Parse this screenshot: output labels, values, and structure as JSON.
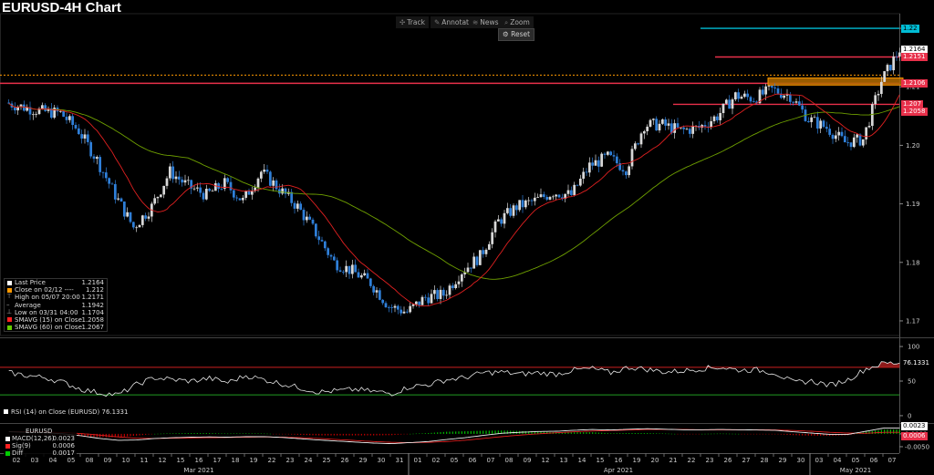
{
  "header": {
    "title": "EURUSD-4H Chart"
  },
  "toolbar": {
    "track": "Track",
    "annotate": "Annotate",
    "news": "News",
    "zoom": "Zoom",
    "reset": "Reset"
  },
  "legend": {
    "items": [
      {
        "label": "Last Price",
        "value": "1.2164",
        "color": "#ffffff"
      },
      {
        "label": "Close on 02/12 ----",
        "value": "1.212",
        "color": "#ff9900"
      },
      {
        "label": "High on 05/07 20:00",
        "value": "1.2171",
        "color": ""
      },
      {
        "label": "Average",
        "value": "1.1942",
        "color": ""
      },
      {
        "label": "Low on 03/31 04:00",
        "value": "1.1704",
        "color": ""
      },
      {
        "label": "SMAVG (15)   on Close",
        "value": "1.2058",
        "color": "#ff2020"
      },
      {
        "label": "SMAVG (60)   on Close",
        "value": "1.2067",
        "color": "#66cc00"
      }
    ]
  },
  "rsi_legend": {
    "label": "RSI (14)   on Close (EURUSD)",
    "value": "76.1331"
  },
  "macd_legend": {
    "title": "EURUSD",
    "items": [
      {
        "label": "MACD(12,26)",
        "value": "0.0023",
        "color": "#ffffff"
      },
      {
        "label": "Sig(9)",
        "value": "0.0006",
        "color": "#ff2020"
      },
      {
        "label": "Diff",
        "value": "0.0017",
        "color": "#00cc00"
      }
    ]
  },
  "price_tags": [
    {
      "text": "1.22",
      "price": 1.22,
      "bg": "#00bcd4",
      "fg": "#000000"
    },
    {
      "text": "1.2164",
      "price": 1.2164,
      "bg": "#ffffff",
      "fg": "#000000"
    },
    {
      "text": "1.2151",
      "price": 1.2151,
      "bg": "#e8304a",
      "fg": "#ffffff"
    },
    {
      "text": "1.2106",
      "price": 1.2106,
      "bg": "#e8304a",
      "fg": "#ffffff"
    },
    {
      "text": "1.207",
      "price": 1.207,
      "bg": "#e8304a",
      "fg": "#ffffff"
    },
    {
      "text": "1.2058",
      "price": 1.2058,
      "bg": "#e8304a",
      "fg": "#ffffff"
    }
  ],
  "rsi_tag": {
    "text": "76.1331",
    "value": 76.1331
  },
  "macd_tags": [
    {
      "text": "0.0023",
      "value": 0.0023,
      "bg": "#ffffff",
      "fg": "#000000"
    },
    {
      "text": "0.0006",
      "value": 0.0006,
      "bg": "#e8304a",
      "fg": "#ffffff"
    }
  ],
  "chart_data": {
    "type": "candlestick",
    "title": "EURUSD-4H Chart",
    "y_ticks": [
      1.17,
      1.18,
      1.19,
      1.2,
      1.21,
      1.22
    ],
    "y_tick_labels": [
      "1.17",
      "1.18",
      "1.19",
      "1.20",
      "1.21",
      "1.22"
    ],
    "ylim": [
      1.1675,
      1.2225
    ],
    "x_day_labels": [
      "02",
      "03",
      "04",
      "05",
      "08",
      "09",
      "10",
      "11",
      "12",
      "15",
      "16",
      "17",
      "18",
      "19",
      "22",
      "23",
      "24",
      "25",
      "26",
      "29",
      "30",
      "31",
      "01",
      "02",
      "05",
      "06",
      "07",
      "08",
      "09",
      "12",
      "13",
      "14",
      "15",
      "16",
      "19",
      "20",
      "21",
      "22",
      "23",
      "26",
      "27",
      "28",
      "29",
      "30",
      "03",
      "04",
      "05",
      "06",
      "07"
    ],
    "x_month_labels": [
      {
        "label": "Mar 2021",
        "day_index": 10
      },
      {
        "label": "Apr 2021",
        "day_index": 33
      },
      {
        "label": "May 2021",
        "day_index": 46
      }
    ],
    "horizontal_levels": [
      {
        "price": 1.22,
        "color": "#00bcd4",
        "from_day": 37.5
      },
      {
        "price": 1.2151,
        "color": "#e8304a",
        "from_day": 38.3
      },
      {
        "price": 1.2106,
        "color": "#e8304a",
        "from_day": -0.5
      },
      {
        "price": 1.207,
        "color": "#e8304a",
        "from_day": 36.0
      },
      {
        "price": 1.212,
        "color": "#ff9900",
        "dashed": true,
        "from_day": -0.5
      }
    ],
    "zone": {
      "from_day": 41.2,
      "to_day": 48.6,
      "low": 1.2103,
      "high": 1.2115,
      "color": "#ff9900"
    },
    "daily_close": [
      1.2065,
      1.2058,
      1.2055,
      1.2025,
      1.1975,
      1.1915,
      1.186,
      1.1895,
      1.1955,
      1.193,
      1.1915,
      1.1935,
      1.1905,
      1.1955,
      1.1925,
      1.1895,
      1.185,
      1.18,
      1.1785,
      1.1765,
      1.1725,
      1.1715,
      1.174,
      1.1745,
      1.1785,
      1.181,
      1.187,
      1.1895,
      1.1905,
      1.192,
      1.1915,
      1.1965,
      1.198,
      1.196,
      1.2035,
      1.2035,
      1.2025,
      1.203,
      1.205,
      1.2085,
      1.208,
      1.2095,
      1.2085,
      1.2045,
      1.203,
      1.2005,
      1.201,
      1.211,
      1.2164
    ],
    "sma15_label": "SMAVG (15)",
    "sma60_label": "SMAVG (60)",
    "rsi": {
      "ticks": [
        0,
        50,
        100
      ],
      "levels": [
        70,
        30
      ],
      "last": 76.1331,
      "daily": [
        62,
        58,
        55,
        48,
        38,
        33,
        30,
        45,
        55,
        52,
        50,
        54,
        48,
        58,
        52,
        46,
        40,
        34,
        36,
        38,
        35,
        32,
        42,
        45,
        52,
        55,
        62,
        63,
        60,
        62,
        60,
        66,
        68,
        62,
        70,
        67,
        63,
        65,
        68,
        70,
        66,
        66,
        62,
        48,
        50,
        44,
        52,
        68,
        76
      ]
    },
    "macd": {
      "tick_labels": [
        "0.0000",
        "-0.0050"
      ],
      "ylim": [
        -0.0075,
        0.0035
      ],
      "macd_daily": [
        0.0008,
        0.0006,
        0.0004,
        0.0,
        -0.0008,
        -0.0018,
        -0.0025,
        -0.0024,
        -0.0018,
        -0.0015,
        -0.0013,
        -0.0012,
        -0.0013,
        -0.0011,
        -0.0011,
        -0.0014,
        -0.0019,
        -0.0024,
        -0.0028,
        -0.0032,
        -0.0036,
        -0.0038,
        -0.0034,
        -0.003,
        -0.0022,
        -0.0015,
        -0.0006,
        0.0002,
        0.0006,
        0.0009,
        0.001,
        0.0014,
        0.0017,
        0.0015,
        0.0018,
        0.002,
        0.0018,
        0.0016,
        0.0016,
        0.0017,
        0.0016,
        0.0015,
        0.0014,
        0.0008,
        0.0003,
        -0.0002,
        -0.0002,
        0.001,
        0.0023
      ],
      "signal_daily": [
        0.0009,
        0.0008,
        0.0007,
        0.0005,
        0.0001,
        -0.0005,
        -0.0012,
        -0.0017,
        -0.0018,
        -0.0017,
        -0.0016,
        -0.0015,
        -0.0014,
        -0.0013,
        -0.0012,
        -0.0013,
        -0.0015,
        -0.0018,
        -0.0022,
        -0.0026,
        -0.003,
        -0.0033,
        -0.0034,
        -0.0033,
        -0.003,
        -0.0025,
        -0.0018,
        -0.0011,
        -0.0005,
        0.0,
        0.0004,
        0.0008,
        0.0011,
        0.0013,
        0.0015,
        0.0017,
        0.0017,
        0.0017,
        0.0016,
        0.0016,
        0.0016,
        0.0016,
        0.0015,
        0.0013,
        0.001,
        0.0006,
        0.0003,
        0.0002,
        0.0006
      ]
    }
  }
}
